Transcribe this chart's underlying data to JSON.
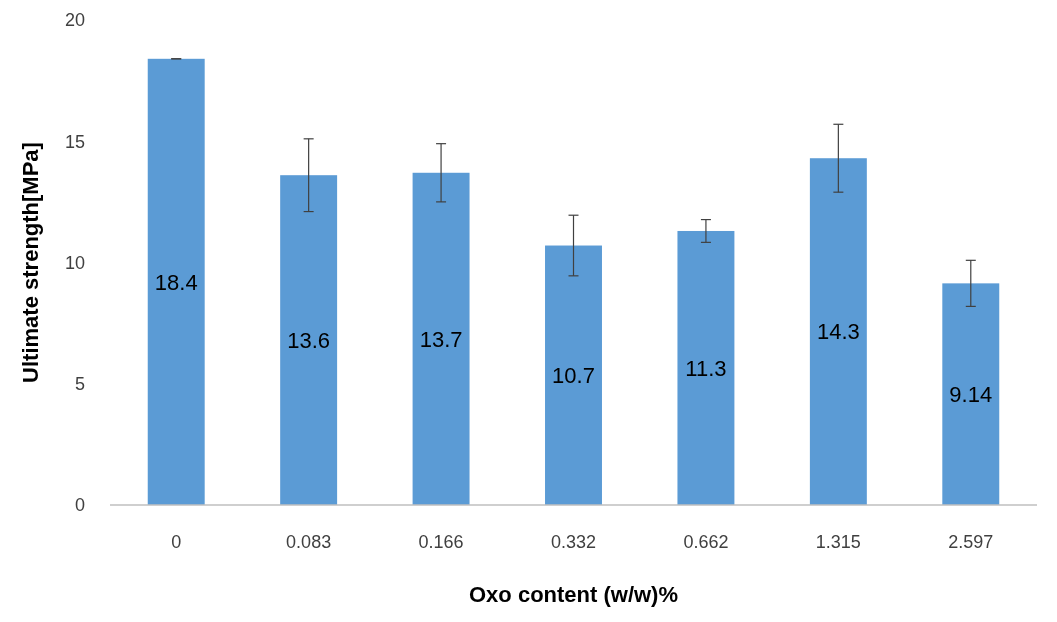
{
  "chart_data": {
    "type": "bar",
    "xlabel": "Oxo content (w/w)%",
    "ylabel": "Ultimate strength[MPa]",
    "categories": [
      "0",
      "0.083",
      "0.166",
      "0.332",
      "0.662",
      "1.315",
      "2.597"
    ],
    "values": [
      18.4,
      13.6,
      13.7,
      10.7,
      11.3,
      14.3,
      9.14
    ],
    "errors": [
      0,
      1.5,
      1.2,
      1.25,
      0.47,
      1.4,
      0.95
    ],
    "color": "#5b9bd5",
    "ylim": [
      0,
      20
    ],
    "yticks": [
      0,
      5,
      10,
      15,
      20
    ],
    "data_labels": true
  }
}
